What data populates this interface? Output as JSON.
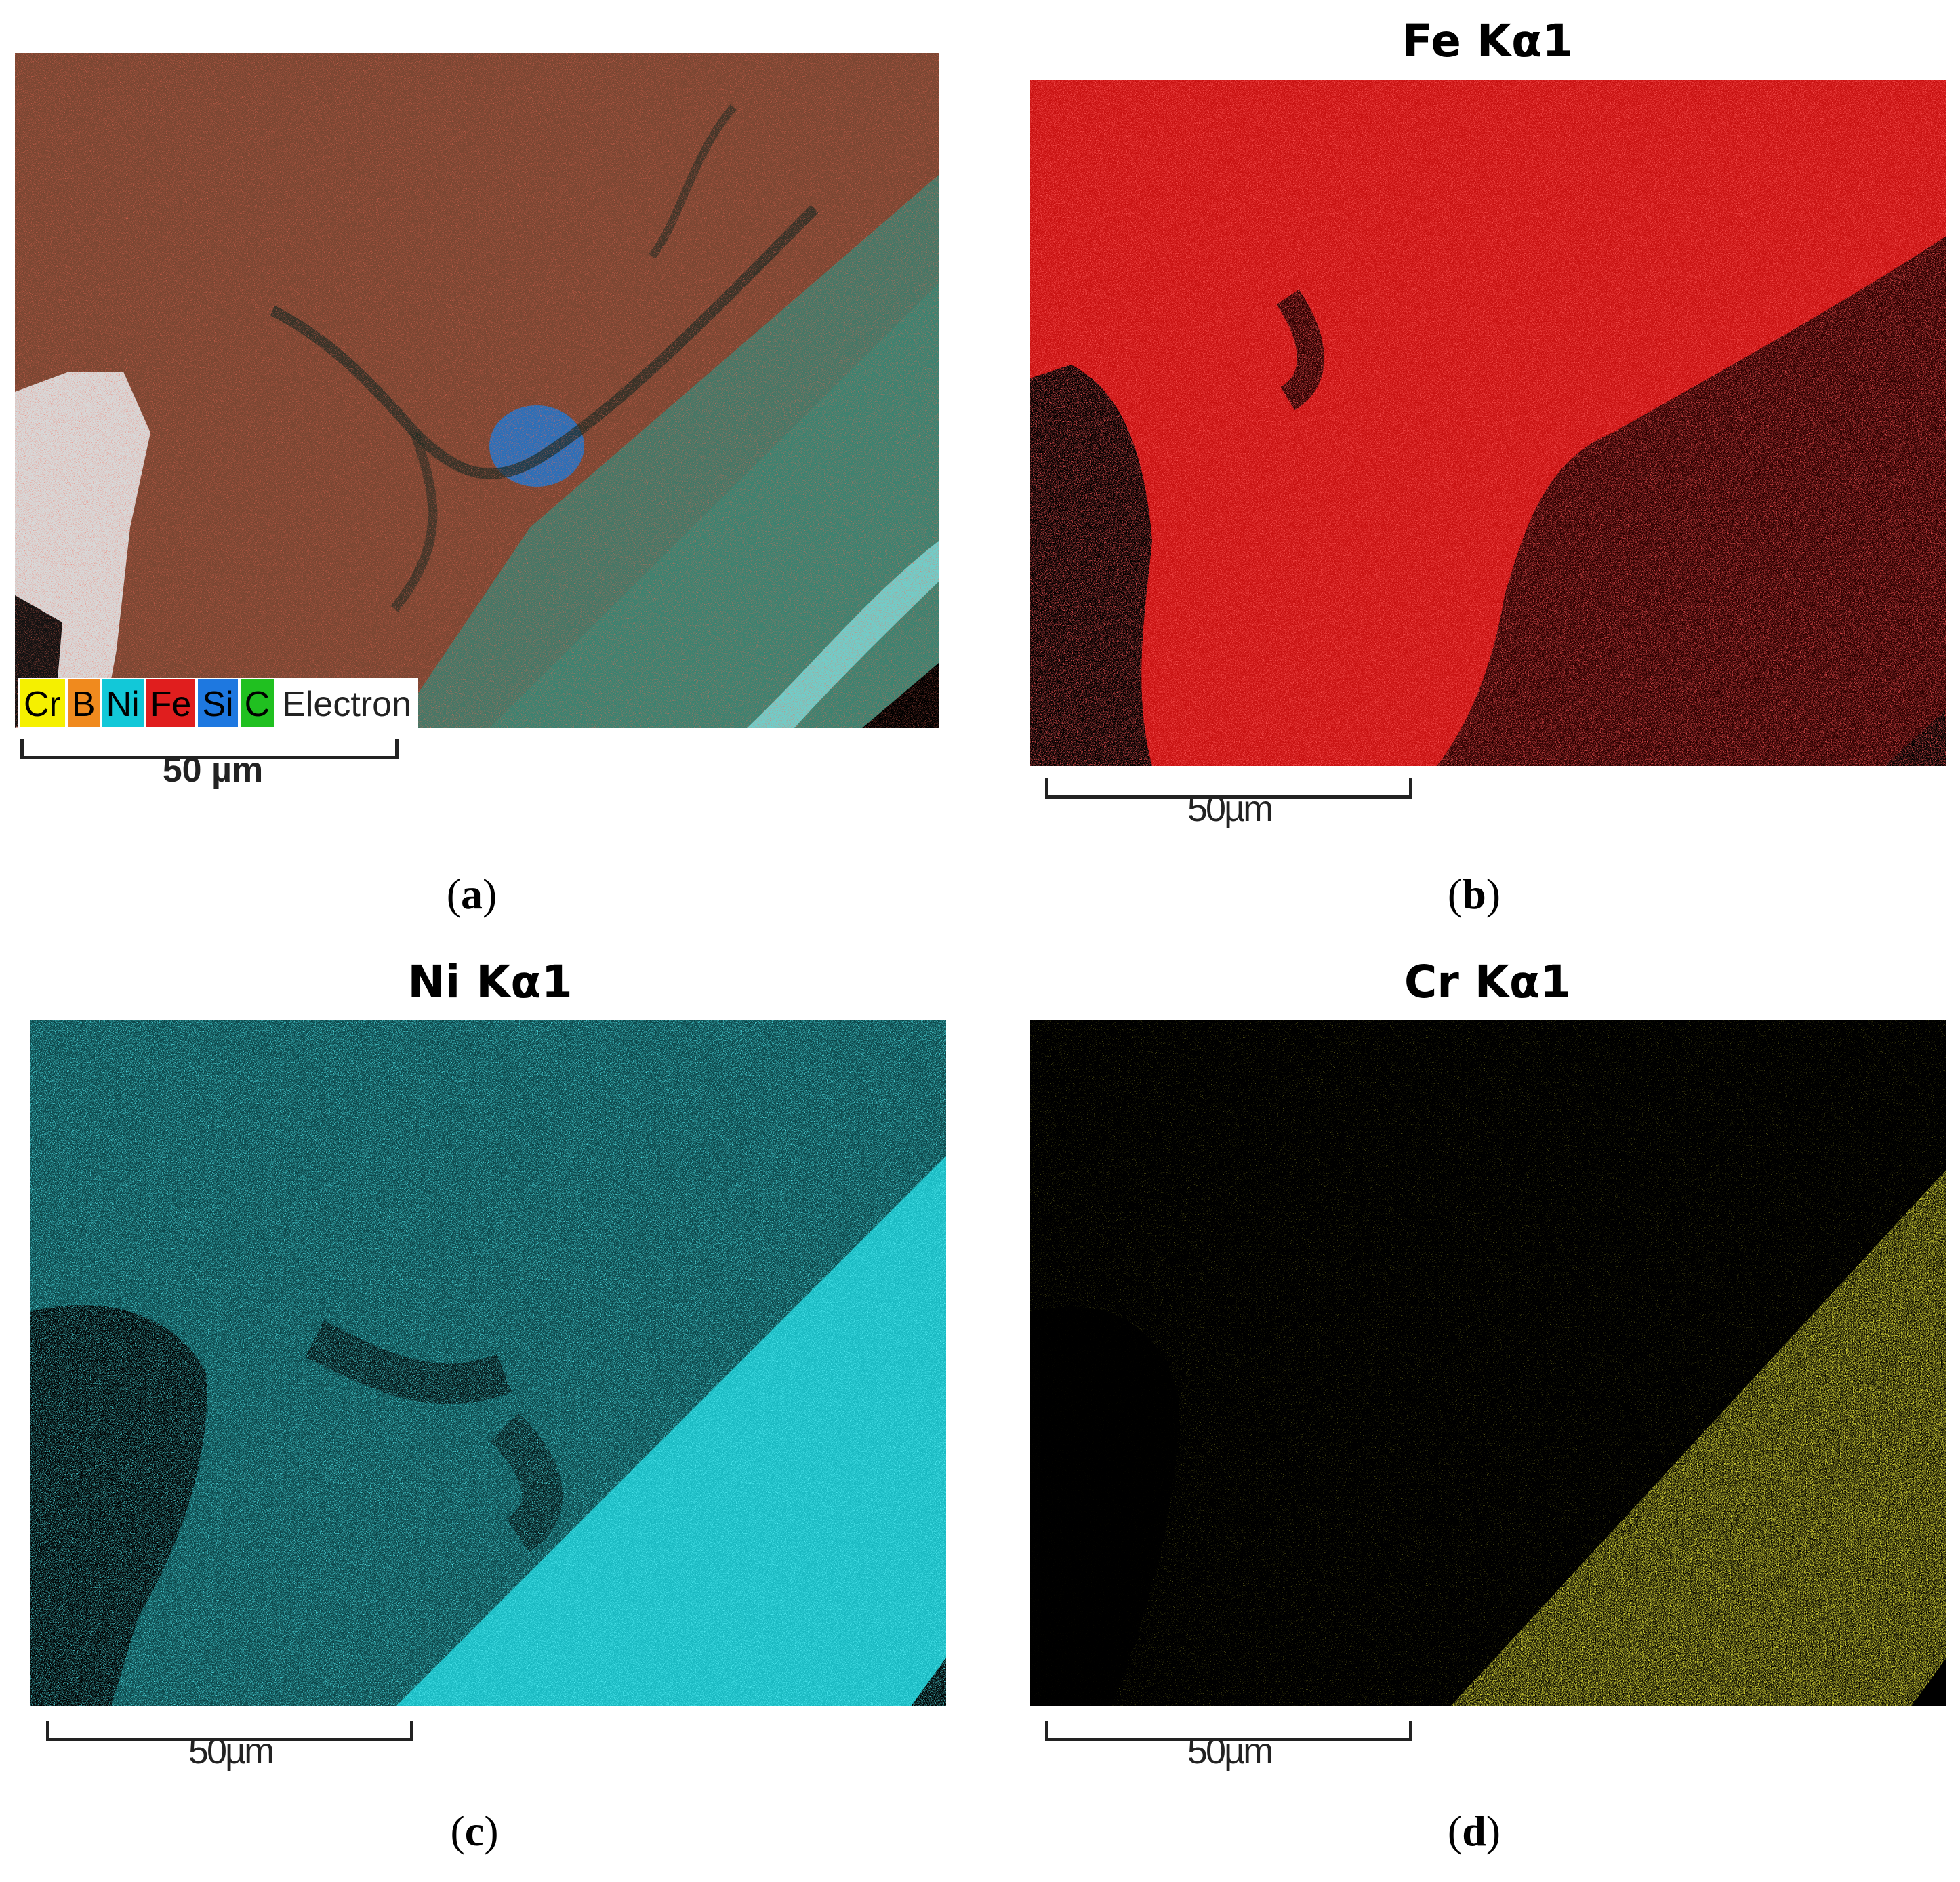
{
  "panels": {
    "a": {
      "caption": "a",
      "scale_label": "50 µm",
      "legend": [
        {
          "label": "Cr",
          "color": "#f5f000"
        },
        {
          "label": "B",
          "color": "#f08a1e"
        },
        {
          "label": "Ni",
          "color": "#12c8d8"
        },
        {
          "label": "Fe",
          "color": "#e01e1e"
        },
        {
          "label": "Si",
          "color": "#1e78e0"
        },
        {
          "label": "C",
          "color": "#20c020"
        },
        {
          "label": "Electron",
          "color": "#ffffff"
        }
      ]
    },
    "b": {
      "title": "Fe Kα1",
      "scale_label": "50µm",
      "caption": "b",
      "color": "#ff1a1a"
    },
    "c": {
      "title": "Ni Kα1",
      "scale_label": "50µm",
      "caption": "c",
      "color": "#1ee0e8"
    },
    "d": {
      "title": "Cr Kα1",
      "scale_label": "50µm",
      "caption": "d",
      "color": "#e8e010"
    }
  }
}
